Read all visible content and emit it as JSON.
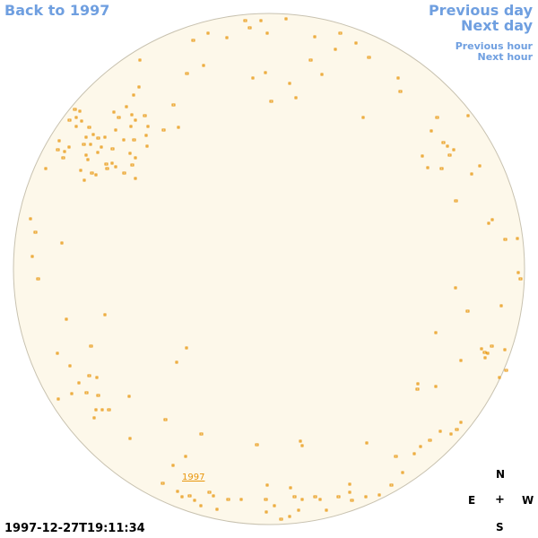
{
  "nav": {
    "back_label": "Back to 1997",
    "prev_day_label": "Previous day",
    "next_day_label": "Next day",
    "prev_hour_label": "Previous hour",
    "next_hour_label": "Next hour"
  },
  "region_label": "1997",
  "timestamp": "1997-12-27T19:11:34",
  "compass": {
    "north": "N",
    "east": "E",
    "center": "+",
    "west": "W",
    "south": "S"
  },
  "colors": {
    "disk_fill": "#fdf8ea",
    "disk_stroke": "#c8c2b0",
    "feature": "#e8950a",
    "link": "#6f9fe0"
  }
}
